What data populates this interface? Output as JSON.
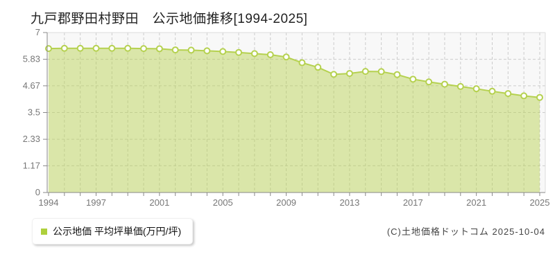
{
  "title": "九戸郡野田村野田　公示地価推移[1994-2025]",
  "legend": {
    "label": "公示地価 平均坪単価(万円/坪)",
    "marker_color": "#aed03c"
  },
  "copyright": "(C)土地価格ドットコム 2025-10-04",
  "colors": {
    "line": "#b5d14f",
    "area_fill": "rgba(181,209,74,0.45)",
    "marker_fill": "#ffffff",
    "grid": "#cccccc",
    "plot_bg": "#f8f8f8",
    "plot_border": "#dddddd",
    "axis": "#888888",
    "tick_label": "#777777",
    "title_text": "#222222",
    "legend_text": "#111111",
    "copyright_text": "#444444"
  },
  "chart_data": {
    "type": "area",
    "title": "九戸郡野田村野田 公示地価推移[1994-2025]",
    "xlabel": "",
    "ylabel": "",
    "x": [
      1994,
      1995,
      1996,
      1997,
      1998,
      1999,
      2000,
      2001,
      2002,
      2003,
      2004,
      2005,
      2006,
      2007,
      2008,
      2009,
      2010,
      2011,
      2012,
      2013,
      2014,
      2015,
      2016,
      2017,
      2018,
      2019,
      2020,
      2021,
      2022,
      2023,
      2024,
      2025
    ],
    "series": [
      {
        "name": "公示地価 平均坪単価(万円/坪)",
        "values": [
          6.3,
          6.31,
          6.31,
          6.31,
          6.31,
          6.31,
          6.3,
          6.29,
          6.24,
          6.23,
          6.2,
          6.17,
          6.13,
          6.08,
          6.03,
          5.93,
          5.68,
          5.48,
          5.17,
          5.21,
          5.3,
          5.29,
          5.16,
          4.96,
          4.84,
          4.74,
          4.64,
          4.54,
          4.43,
          4.33,
          4.23,
          4.16
        ]
      }
    ],
    "ylim": [
      0,
      7
    ],
    "y_ticks": [
      0,
      1.17,
      2.33,
      3.5,
      4.67,
      5.83,
      7
    ],
    "x_tick_labels": [
      1994,
      1997,
      2001,
      2005,
      2009,
      2013,
      2017,
      2021,
      2025
    ],
    "grid": true,
    "legend_position": "bottom-left"
  }
}
